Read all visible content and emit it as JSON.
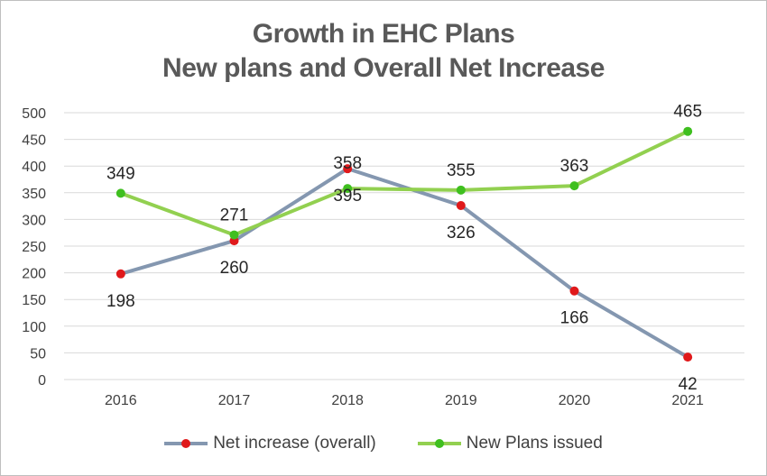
{
  "chart_data": {
    "type": "line",
    "title": "Growth in EHC Plans",
    "subtitle": "New plans and Overall Net Increase",
    "categories": [
      "2016",
      "2017",
      "2018",
      "2019",
      "2020",
      "2021"
    ],
    "ylim": [
      0,
      500
    ],
    "yticks": [
      "0",
      "50",
      "100",
      "150",
      "200",
      "250",
      "300",
      "350",
      "400",
      "450",
      "500"
    ],
    "grid": true,
    "legend_position": "bottom",
    "series": [
      {
        "name": "Net increase (overall)",
        "values": [
          198,
          260,
          395,
          326,
          166,
          42
        ],
        "line_color": "#8497b0",
        "marker_color": "#e0191b"
      },
      {
        "name": "New Plans issued",
        "values": [
          349,
          271,
          358,
          355,
          363,
          465
        ],
        "line_color": "#92d050",
        "marker_color": "#3fbf1f"
      }
    ]
  }
}
